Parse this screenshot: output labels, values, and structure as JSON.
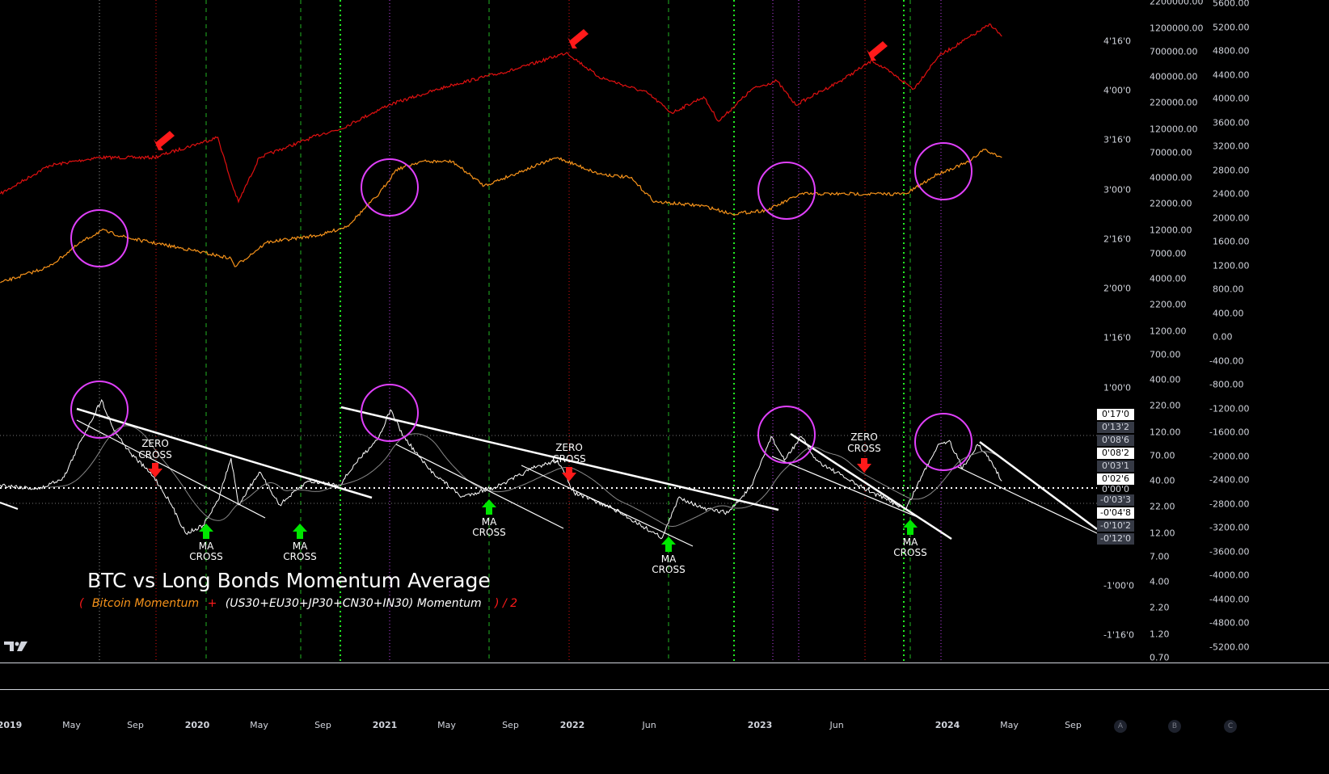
{
  "chart_data": {
    "type": "line",
    "title": "BTC vs Long Bonds Momentum Average",
    "subtitle": {
      "open": "(",
      "part1": "Bitcoin Momentum",
      "plus": "+",
      "part2": "(US30+EU30+JP30+CN30+IN30) Momentum",
      "close": ") / 2"
    },
    "x_ticks": [
      {
        "label": "2019",
        "year": 2019,
        "bold": true
      },
      {
        "label": "May",
        "year": 2019.33
      },
      {
        "label": "Sep",
        "year": 2019.67
      },
      {
        "label": "2020",
        "year": 2020,
        "bold": true
      },
      {
        "label": "May",
        "year": 2020.33
      },
      {
        "label": "Sep",
        "year": 2020.67
      },
      {
        "label": "2021",
        "year": 2021,
        "bold": true
      },
      {
        "label": "May",
        "year": 2021.33
      },
      {
        "label": "Sep",
        "year": 2021.67
      },
      {
        "label": "2022",
        "year": 2022,
        "bold": true
      },
      {
        "label": "Jun",
        "year": 2022.41
      },
      {
        "label": "2023",
        "year": 2023,
        "bold": true
      },
      {
        "label": "Jun",
        "year": 2023.41
      },
      {
        "label": "2024",
        "year": 2024,
        "bold": true
      },
      {
        "label": "May",
        "year": 2024.33
      },
      {
        "label": "Sep",
        "year": 2024.67
      }
    ],
    "axis_momentum_ticks": [
      {
        "label": "4'16'0",
        "value": 4.5
      },
      {
        "label": "4'00'0",
        "value": 4.0
      },
      {
        "label": "3'16'0",
        "value": 3.5
      },
      {
        "label": "3'00'0",
        "value": 3.0
      },
      {
        "label": "2'16'0",
        "value": 2.5
      },
      {
        "label": "2'00'0",
        "value": 2.0
      },
      {
        "label": "1'16'0",
        "value": 1.5
      },
      {
        "label": "1'00'0",
        "value": 1.0
      },
      {
        "label": "-1'00'0",
        "value": -1.0
      },
      {
        "label": "-1'16'0",
        "value": -1.5
      }
    ],
    "axis_log_ticks": [
      "2200000.00",
      "1200000.00",
      "700000.00",
      "400000.00",
      "220000.00",
      "120000.00",
      "70000.00",
      "40000.00",
      "22000.00",
      "12000.00",
      "7000.00",
      "4000.00",
      "2200.00",
      "1200.00",
      "700.00",
      "400.00",
      "220.00",
      "120.00",
      "70.00",
      "40.00",
      "22.00",
      "12.00",
      "7.00",
      "4.00",
      "2.20",
      "1.20",
      "0.70"
    ],
    "axis_linear_ticks": [
      "5600.00",
      "5200.00",
      "4800.00",
      "4400.00",
      "4000.00",
      "3600.00",
      "3200.00",
      "2800.00",
      "2400.00",
      "2000.00",
      "1600.00",
      "1200.00",
      "800.00",
      "400.00",
      "0.00",
      "-400.00",
      "-800.00",
      "-1200.00",
      "-1600.00",
      "-2000.00",
      "-2400.00",
      "-2800.00",
      "-3200.00",
      "-3600.00",
      "-4000.00",
      "-4400.00",
      "-4800.00",
      "-5200.00"
    ],
    "price_tags": [
      {
        "label": "0'17'0",
        "value": 0.58,
        "style": "light"
      },
      {
        "label": "0'13'2",
        "value": 0.44,
        "style": "dark"
      },
      {
        "label": "0'08'6",
        "value": 0.31,
        "style": "dark"
      },
      {
        "label": "0'08'2",
        "value": 0.18,
        "style": "light"
      },
      {
        "label": "0'03'1",
        "value": 0.05,
        "style": "dark"
      },
      {
        "label": "0'02'6",
        "value": -0.08,
        "style": "light"
      },
      {
        "label": "-0'03'3",
        "value": -0.11,
        "style": "dark"
      },
      {
        "label": "-0'04'8",
        "value": -0.24,
        "style": "light"
      },
      {
        "label": "-0'10'2",
        "value": -0.37,
        "style": "dark"
      },
      {
        "label": "-0'12'0",
        "value": -0.5,
        "style": "dark"
      }
    ],
    "zero_label": "0'00'0",
    "series": [
      {
        "name": "Composite (red)",
        "color": "#e01010",
        "axis": "log",
        "points": [
          [
            2018.95,
            27500
          ],
          [
            2019.21,
            52400
          ],
          [
            2019.47,
            63000
          ],
          [
            2019.77,
            63000
          ],
          [
            2020.11,
            100000
          ],
          [
            2020.18,
            36300
          ],
          [
            2020.22,
            22900
          ],
          [
            2020.33,
            63000
          ],
          [
            2020.67,
            109000
          ],
          [
            2020.76,
            120000
          ],
          [
            2021.02,
            209000
          ],
          [
            2021.36,
            330000
          ],
          [
            2021.71,
            478000
          ],
          [
            2021.97,
            690000
          ],
          [
            2022.14,
            397000
          ],
          [
            2022.4,
            275000
          ],
          [
            2022.53,
            174000
          ],
          [
            2022.7,
            251000
          ],
          [
            2022.78,
            144000
          ],
          [
            2022.96,
            301000
          ],
          [
            2023.09,
            362000
          ],
          [
            2023.19,
            209000
          ],
          [
            2023.43,
            362000
          ],
          [
            2023.6,
            575000
          ],
          [
            2023.73,
            397000
          ],
          [
            2023.82,
            301000
          ],
          [
            2023.95,
            630000
          ],
          [
            2024.23,
            1315000
          ],
          [
            2024.29,
            998000
          ]
        ]
      },
      {
        "name": "Bitcoin (orange)",
        "color": "#f7931a",
        "axis": "log",
        "points": [
          [
            2018.95,
            3620
          ],
          [
            2019.21,
            5240
          ],
          [
            2019.38,
            9100
          ],
          [
            2019.49,
            12000
          ],
          [
            2019.64,
            9980
          ],
          [
            2019.98,
            7570
          ],
          [
            2020.18,
            6300
          ],
          [
            2020.2,
            5240
          ],
          [
            2020.37,
            9100
          ],
          [
            2020.67,
            10900
          ],
          [
            2020.8,
            13200
          ],
          [
            2020.97,
            27500
          ],
          [
            2021.06,
            47800
          ],
          [
            2021.19,
            57500
          ],
          [
            2021.36,
            57500
          ],
          [
            2021.53,
            33100
          ],
          [
            2021.75,
            47800
          ],
          [
            2021.92,
            63000
          ],
          [
            2022.14,
            43600
          ],
          [
            2022.31,
            39700
          ],
          [
            2022.44,
            22900
          ],
          [
            2022.7,
            20900
          ],
          [
            2022.85,
            17400
          ],
          [
            2023.04,
            19000
          ],
          [
            2023.22,
            27500
          ],
          [
            2023.43,
            27500
          ],
          [
            2023.65,
            27500
          ],
          [
            2023.78,
            27500
          ],
          [
            2023.95,
            43600
          ],
          [
            2024.12,
            57500
          ],
          [
            2024.19,
            75700
          ],
          [
            2024.29,
            63000
          ]
        ]
      },
      {
        "name": "Momentum Average (white)",
        "color": "#ffffff",
        "axis": "momentum",
        "points": [
          [
            2018.95,
            0.03
          ],
          [
            2019.16,
            -0.01
          ],
          [
            2019.29,
            0.11
          ],
          [
            2019.38,
            0.48
          ],
          [
            2019.49,
            0.89
          ],
          [
            2019.55,
            0.61
          ],
          [
            2019.64,
            0.36
          ],
          [
            2019.77,
            0.11
          ],
          [
            2019.85,
            -0.13
          ],
          [
            2019.94,
            -0.46
          ],
          [
            2020.03,
            -0.38
          ],
          [
            2020.11,
            -0.13
          ],
          [
            2020.18,
            0.3
          ],
          [
            2020.22,
            -0.17
          ],
          [
            2020.33,
            0.16
          ],
          [
            2020.44,
            -0.17
          ],
          [
            2020.59,
            0.07
          ],
          [
            2020.76,
            0.03
          ],
          [
            2020.84,
            0.24
          ],
          [
            2020.97,
            0.52
          ],
          [
            2021.03,
            0.79
          ],
          [
            2021.1,
            0.52
          ],
          [
            2021.23,
            0.2
          ],
          [
            2021.41,
            -0.09
          ],
          [
            2021.62,
            0.03
          ],
          [
            2021.79,
            0.2
          ],
          [
            2021.92,
            0.28
          ],
          [
            2022.01,
            -0.05
          ],
          [
            2022.22,
            -0.21
          ],
          [
            2022.44,
            -0.46
          ],
          [
            2022.48,
            -0.5
          ],
          [
            2022.57,
            -0.09
          ],
          [
            2022.7,
            -0.21
          ],
          [
            2022.83,
            -0.25
          ],
          [
            2022.96,
            0.03
          ],
          [
            2023.06,
            0.52
          ],
          [
            2023.13,
            0.28
          ],
          [
            2023.22,
            0.52
          ],
          [
            2023.3,
            0.28
          ],
          [
            2023.52,
            0.03
          ],
          [
            2023.69,
            -0.13
          ],
          [
            2023.78,
            -0.21
          ],
          [
            2023.86,
            0.11
          ],
          [
            2023.95,
            0.44
          ],
          [
            2024.01,
            0.48
          ],
          [
            2024.08,
            0.2
          ],
          [
            2024.16,
            0.44
          ],
          [
            2024.23,
            0.28
          ],
          [
            2024.29,
            0.07
          ]
        ]
      }
    ],
    "moving_average": {
      "name": "Momentum MA (gray)",
      "color": "#888888"
    },
    "annotations": {
      "zero_cross": "ZERO\nCROSS",
      "ma_cross": "MA\nCROSS",
      "zero_line": "ZERO",
      "cross_word": "CROSS",
      "ma_word": "MA"
    },
    "colors": {
      "highlight_circle": "#e040fb",
      "arrow_red": "#ff1a1a",
      "arrow_green": "#00e600"
    }
  },
  "footer": {
    "buttons": [
      "A",
      "B",
      "C"
    ]
  }
}
